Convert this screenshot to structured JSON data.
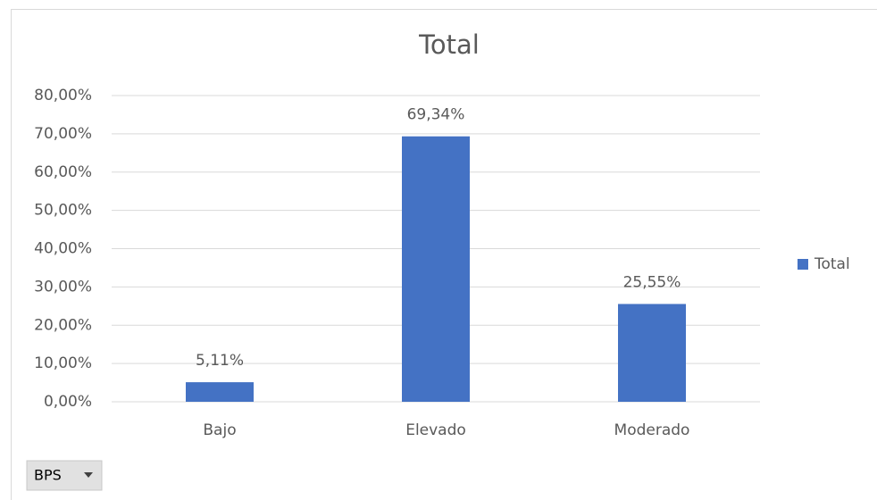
{
  "chart_data": {
    "type": "bar",
    "title": "Total",
    "categories": [
      "Bajo",
      "Elevado",
      "Moderado"
    ],
    "series": [
      {
        "name": "Total",
        "color": "#4472c4",
        "values": [
          5.11,
          69.34,
          25.55
        ],
        "value_labels": [
          "5,11%",
          "69,34%",
          "25,55%"
        ]
      }
    ],
    "ylim": [
      0,
      80
    ],
    "yticks": [
      {
        "value": 0,
        "label": "0,00%"
      },
      {
        "value": 10,
        "label": "10,00%"
      },
      {
        "value": 20,
        "label": "20,00%"
      },
      {
        "value": 30,
        "label": "30,00%"
      },
      {
        "value": 40,
        "label": "40,00%"
      },
      {
        "value": 50,
        "label": "50,00%"
      },
      {
        "value": 60,
        "label": "60,00%"
      },
      {
        "value": 70,
        "label": "70,00%"
      },
      {
        "value": 80,
        "label": "80,00%"
      }
    ],
    "grid": true,
    "legend": "right",
    "field_button": "BPS"
  }
}
